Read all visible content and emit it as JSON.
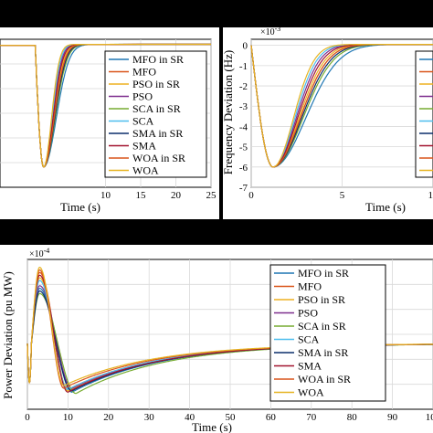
{
  "legend_entries": [
    "MFO in SR",
    "MFO",
    "PSO in SR",
    "PSO",
    "SCA in SR",
    "SCA",
    "SMA in SR",
    "SMA",
    "WOA in SR",
    "WOA"
  ],
  "series_colors": [
    "#1f77b4",
    "#d95319",
    "#edb120",
    "#7e2f8e",
    "#77ac30",
    "#4dbeee",
    "#0b2e6b",
    "#a2142f",
    "#d9541a",
    "#e6b422"
  ],
  "chart_data": [
    {
      "type": "line",
      "title": "",
      "xlabel": "Time (s)",
      "ylabel": "",
      "xlim": [
        -5,
        25
      ],
      "ylim": [
        -7,
        0.3
      ],
      "x_ticks": [
        10,
        15,
        20,
        25
      ],
      "grid": true,
      "legend_position": "right",
      "series_names": [
        "MFO in SR",
        "MFO",
        "PSO in SR",
        "PSO",
        "SCA in SR",
        "SCA",
        "SMA in SR",
        "SMA",
        "WOA in SR",
        "WOA"
      ],
      "series_params": [
        {
          "min_x": 1.2,
          "min_y": -6.0,
          "recovery": 2.4
        },
        {
          "min_x": 1.2,
          "min_y": -6.0,
          "recovery": 2.0
        },
        {
          "min_x": 1.2,
          "min_y": -6.0,
          "recovery": 1.9
        },
        {
          "min_x": 1.2,
          "min_y": -6.0,
          "recovery": 1.7
        },
        {
          "min_x": 1.2,
          "min_y": -6.0,
          "recovery": 2.2
        },
        {
          "min_x": 1.2,
          "min_y": -6.0,
          "recovery": 1.6
        },
        {
          "min_x": 1.2,
          "min_y": -6.0,
          "recovery": 2.1
        },
        {
          "min_x": 1.2,
          "min_y": -6.0,
          "recovery": 1.8
        },
        {
          "min_x": 1.2,
          "min_y": -6.0,
          "recovery": 2.0
        },
        {
          "min_x": 1.2,
          "min_y": -6.0,
          "recovery": 1.5
        }
      ]
    },
    {
      "type": "line",
      "title": "",
      "xlabel": "Time (s)",
      "ylabel": "Frequency Deviation (Hz)",
      "exponent_label": "×10",
      "exponent_power": "-3",
      "xlim": [
        0,
        10
      ],
      "ylim": [
        -7,
        0.3
      ],
      "x_ticks": [
        0,
        5,
        10
      ],
      "y_ticks": [
        0,
        -1,
        -2,
        -3,
        -4,
        -5,
        -6,
        -7
      ],
      "grid": true,
      "legend_position": "right",
      "series_names": [
        "MFO in SR",
        "MFO",
        "PSO in SR",
        "PSO",
        "SCA in SR",
        "SCA",
        "SMA in SR",
        "SMA",
        "WOA in SR",
        "WOA"
      ],
      "series_params": [
        {
          "min_x": 1.2,
          "min_y": -6.0,
          "recovery": 2.4
        },
        {
          "min_x": 1.2,
          "min_y": -6.0,
          "recovery": 2.0
        },
        {
          "min_x": 1.2,
          "min_y": -6.0,
          "recovery": 1.9
        },
        {
          "min_x": 1.2,
          "min_y": -6.0,
          "recovery": 1.7
        },
        {
          "min_x": 1.2,
          "min_y": -6.0,
          "recovery": 2.2
        },
        {
          "min_x": 1.2,
          "min_y": -6.0,
          "recovery": 1.6
        },
        {
          "min_x": 1.2,
          "min_y": -6.0,
          "recovery": 2.1
        },
        {
          "min_x": 1.2,
          "min_y": -6.0,
          "recovery": 1.8
        },
        {
          "min_x": 1.2,
          "min_y": -6.0,
          "recovery": 2.0
        },
        {
          "min_x": 1.2,
          "min_y": -6.0,
          "recovery": 1.5
        }
      ]
    },
    {
      "type": "line",
      "title": "",
      "xlabel": "Time (s)",
      "ylabel": "Power Deviation (pu MW)",
      "exponent_label": "×10",
      "exponent_power": "-4",
      "xlim": [
        0,
        100
      ],
      "ylim": [
        -2.5,
        3.2
      ],
      "x_ticks": [
        0,
        10,
        20,
        30,
        40,
        50,
        60,
        70,
        80,
        90,
        100
      ],
      "grid": true,
      "legend_position": "right",
      "series_names": [
        "MFO in SR",
        "MFO",
        "PSO in SR",
        "PSO",
        "SCA in SR",
        "SCA",
        "SMA in SR",
        "SMA",
        "WOA in SR",
        "WOA"
      ],
      "series_params": [
        {
          "peak": 2.1,
          "trough": -1.85,
          "trough_x": 11
        },
        {
          "peak": 2.7,
          "trough": -1.75,
          "trough_x": 10
        },
        {
          "peak": 2.5,
          "trough": -1.8,
          "trough_x": 10
        },
        {
          "peak": 2.2,
          "trough": -1.7,
          "trough_x": 11
        },
        {
          "peak": 1.9,
          "trough": -1.9,
          "trough_x": 12
        },
        {
          "peak": 2.4,
          "trough": -1.75,
          "trough_x": 10
        },
        {
          "peak": 2.0,
          "trough": -1.8,
          "trough_x": 11
        },
        {
          "peak": 2.6,
          "trough": -1.85,
          "trough_x": 10
        },
        {
          "peak": 2.8,
          "trough": -1.7,
          "trough_x": 9
        },
        {
          "peak": 2.9,
          "trough": -1.6,
          "trough_x": 9
        }
      ]
    }
  ]
}
